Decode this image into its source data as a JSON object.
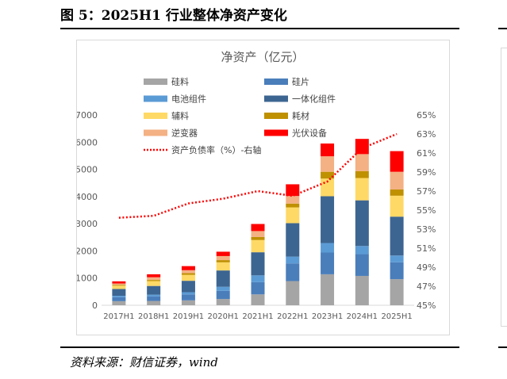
{
  "figure": {
    "title": "图 5：2025H1 行业整体净资产变化",
    "source": "资料来源：财信证券，wind"
  },
  "colors": {
    "硅料": "#a5a5a5",
    "硅片": "#4a7ebb",
    "电池组件": "#5b9bd5",
    "一体化组件": "#3d6591",
    "辅料": "#ffd966",
    "耗材": "#bf9000",
    "逆变器": "#f4b183",
    "光伏设备": "#ff0000",
    "line": "#ff0000"
  },
  "chart_data": {
    "type": "bar",
    "stacked": true,
    "title": "净资产（亿元）",
    "xlabel": "",
    "ylabel": "",
    "categories": [
      "2017H1",
      "2018H1",
      "2019H1",
      "2020H1",
      "2021H1",
      "2022H1",
      "2023H1",
      "2024H1",
      "2025H1"
    ],
    "ylim": [
      0,
      7000
    ],
    "yticks": [
      0,
      1000,
      2000,
      3000,
      4000,
      5000,
      6000,
      7000
    ],
    "y2lim": [
      45,
      65
    ],
    "y2ticks": [
      "45%",
      "47%",
      "49%",
      "51%",
      "53%",
      "55%",
      "57%",
      "59%",
      "61%",
      "63%",
      "65%"
    ],
    "legend_position": "top",
    "grid": false,
    "series": [
      {
        "name": "硅料",
        "values": [
          150,
          160,
          180,
          230,
          400,
          890,
          1140,
          1080,
          960
        ]
      },
      {
        "name": "硅片",
        "values": [
          150,
          170,
          220,
          300,
          450,
          650,
          800,
          800,
          620
        ]
      },
      {
        "name": "电池组件",
        "values": [
          50,
          60,
          80,
          150,
          250,
          250,
          350,
          300,
          250
        ]
      },
      {
        "name": "一体化组件",
        "values": [
          250,
          320,
          420,
          600,
          850,
          1230,
          1720,
          1680,
          1430
        ]
      },
      {
        "name": "辅料",
        "values": [
          120,
          180,
          220,
          300,
          450,
          580,
          650,
          820,
          770
        ]
      },
      {
        "name": "耗材",
        "values": [
          30,
          40,
          60,
          80,
          110,
          140,
          250,
          250,
          230
        ]
      },
      {
        "name": "逆变器",
        "values": [
          50,
          100,
          110,
          150,
          220,
          280,
          570,
          630,
          650
        ]
      },
      {
        "name": "光伏设备",
        "values": [
          80,
          110,
          150,
          160,
          260,
          430,
          470,
          560,
          760
        ]
      }
    ],
    "line_series": {
      "name": "资产负债率（%）-右轴",
      "axis": "right",
      "values": [
        54.2,
        54.4,
        55.7,
        56.2,
        57.0,
        56.5,
        58.0,
        61.5,
        63.0
      ]
    }
  }
}
